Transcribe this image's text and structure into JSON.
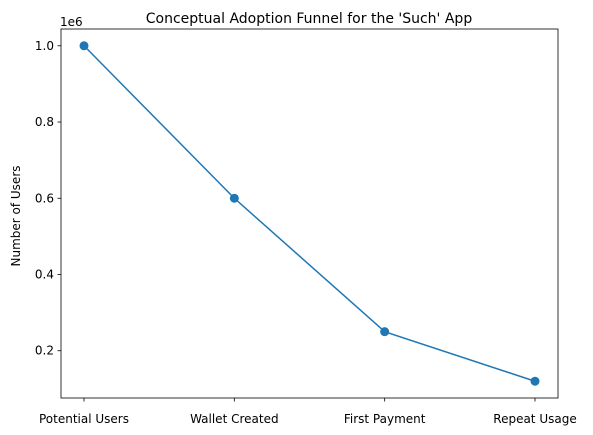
{
  "chart_data": {
    "type": "line",
    "title": "Conceptual Adoption Funnel for the 'Such' App",
    "xlabel": "",
    "ylabel": "Number of Users",
    "categories": [
      "Potential Users",
      "Wallet Created",
      "First Payment",
      "Repeat Usage"
    ],
    "series": [
      {
        "values": [
          1000000,
          600000,
          250000,
          120000
        ],
        "color": "#1f77b4",
        "marker": "circle"
      }
    ],
    "y_ticks": [
      200000,
      400000,
      600000,
      800000,
      1000000
    ],
    "y_tick_labels": [
      "0.2",
      "0.4",
      "0.6",
      "0.8",
      "1.0"
    ],
    "y_offset_label": "1e6",
    "ylim": [
      76000,
      1044000
    ],
    "grid": false,
    "legend": "none"
  }
}
